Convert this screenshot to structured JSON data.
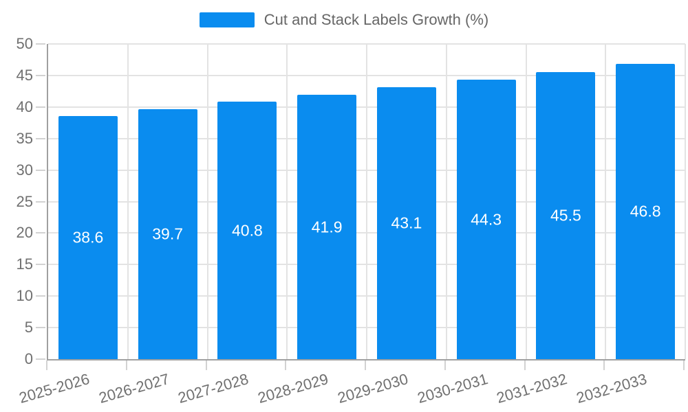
{
  "legend": {
    "position": "top-center",
    "swatch_color": "#0A8CEF"
  },
  "chart_data": {
    "type": "bar",
    "title": "Cut and Stack Labels Growth (%)",
    "categories": [
      "2025-2026",
      "2026-2027",
      "2027-2028",
      "2028-2029",
      "2029-2030",
      "2030-2031",
      "2031-2032",
      "2032-2033"
    ],
    "values": [
      38.6,
      39.7,
      40.8,
      41.9,
      43.1,
      44.3,
      45.5,
      46.8
    ],
    "bar_labels": [
      "38.6",
      "39.7",
      "40.8",
      "41.9",
      "43.1",
      "44.3",
      "45.5",
      "46.8"
    ],
    "xlabel": "",
    "ylabel": "",
    "ylim": [
      0,
      50
    ],
    "ytick_step": 5,
    "ytick_labels": [
      "0",
      "5",
      "10",
      "15",
      "20",
      "25",
      "30",
      "35",
      "40",
      "45",
      "50"
    ],
    "grid": true,
    "x_label_rotation_deg": -16,
    "legend_position": "top-center",
    "bar_color": "#0A8CEF",
    "bar_value_label_color": "#FFFFFF",
    "axis_text_color": "#707070",
    "legend_text_color": "#666666",
    "grid_color": "#e3e3e3",
    "axis_line_color": "#a0a0a0"
  }
}
